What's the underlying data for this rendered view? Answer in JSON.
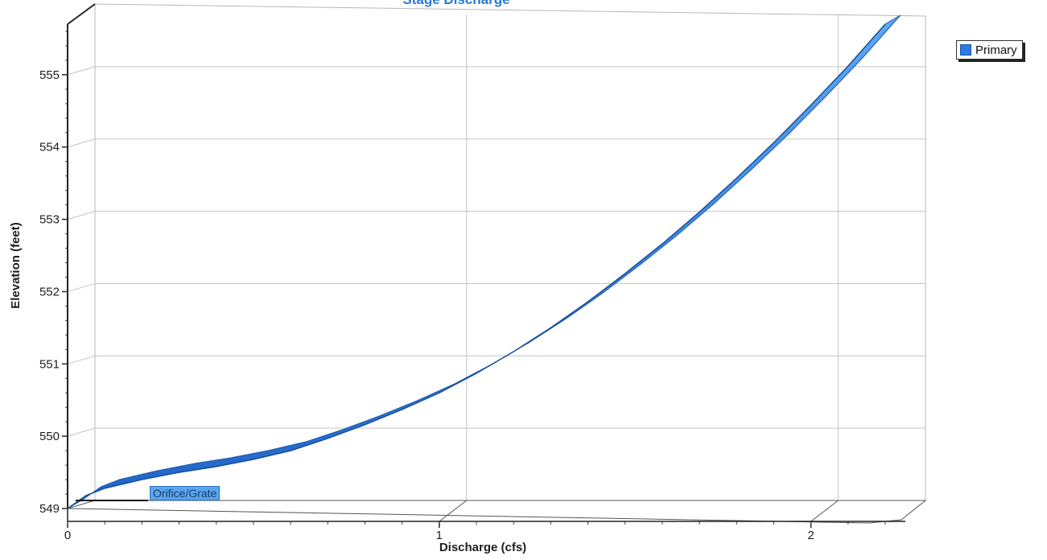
{
  "chart_data": {
    "type": "area",
    "title": "Stage Discharge",
    "xlabel": "Discharge (cfs)",
    "ylabel": "Elevation (feet)",
    "xlim": [
      0,
      2.2
    ],
    "ylim": [
      549,
      555.7
    ],
    "x_ticks": [
      "0",
      "1",
      "2"
    ],
    "y_ticks": [
      "549",
      "550",
      "551",
      "552",
      "553",
      "554",
      "555"
    ],
    "grid": true,
    "legend_position": "top-right",
    "series": [
      {
        "name": "Primary",
        "color": "#2c7ae2",
        "x": [
          0,
          0.05,
          0.1,
          0.2,
          0.3,
          0.4,
          0.5,
          0.6,
          0.7,
          0.8,
          0.9,
          1.0,
          1.1,
          1.2,
          1.3,
          1.4,
          1.5,
          1.6,
          1.7,
          1.8,
          1.9,
          2.0,
          2.1,
          2.2
        ],
        "y": [
          549.0,
          549.18,
          549.28,
          549.4,
          549.5,
          549.58,
          549.68,
          549.8,
          549.97,
          550.16,
          550.37,
          550.6,
          550.87,
          551.17,
          551.5,
          551.86,
          552.25,
          552.66,
          553.1,
          553.57,
          554.06,
          554.58,
          555.12,
          555.7
        ]
      }
    ],
    "annotations": [
      {
        "text": "Orifice/Grate",
        "x": 0.2,
        "y": 549.08
      }
    ]
  }
}
